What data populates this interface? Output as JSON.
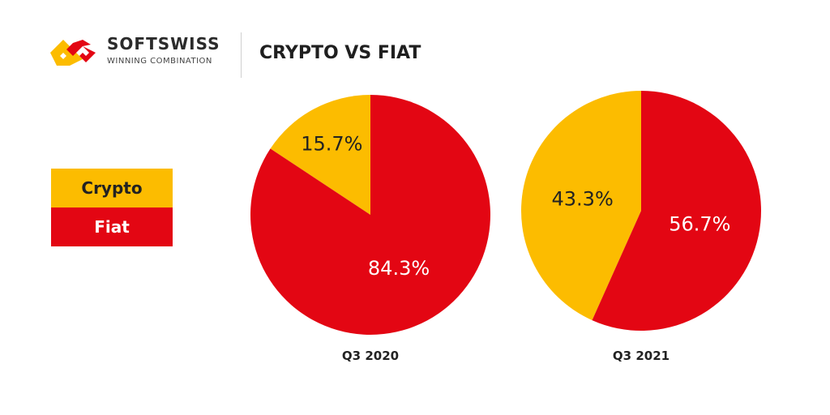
{
  "header": {
    "brand": "SOFTSWISS",
    "tagline": "WINNING COMBINATION",
    "title": "CRYPTO VS FIAT"
  },
  "colors": {
    "crypto": "#fcbc00",
    "fiat": "#e30613",
    "text_dark": "#222222",
    "text_light": "#ffffff"
  },
  "legend": [
    {
      "label": "Crypto",
      "color": "#fcbc00"
    },
    {
      "label": "Fiat",
      "color": "#e30613"
    }
  ],
  "chart_data": [
    {
      "type": "pie",
      "title": "Q3 2020",
      "slices": [
        {
          "label": "Crypto",
          "value": 15.7,
          "display": "15.7%",
          "color": "#fcbc00"
        },
        {
          "label": "Fiat",
          "value": 84.3,
          "display": "84.3%",
          "color": "#e30613"
        }
      ]
    },
    {
      "type": "pie",
      "title": "Q3 2021",
      "slices": [
        {
          "label": "Crypto",
          "value": 43.3,
          "display": "43.3%",
          "color": "#fcbc00"
        },
        {
          "label": "Fiat",
          "value": 56.7,
          "display": "56.7%",
          "color": "#e30613"
        }
      ]
    }
  ]
}
